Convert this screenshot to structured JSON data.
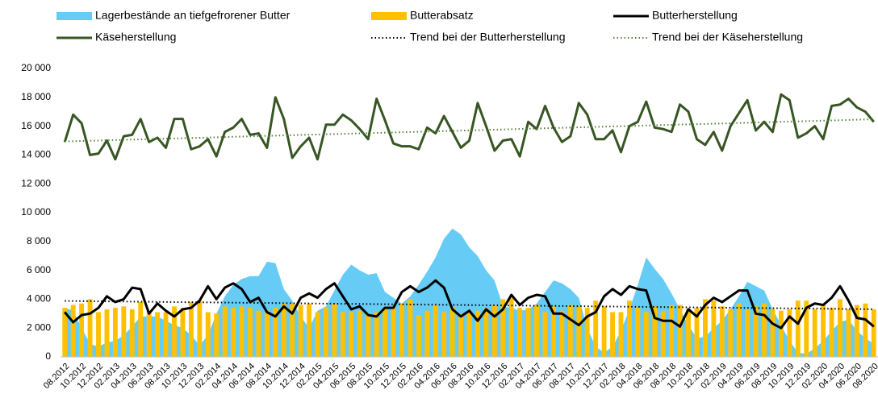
{
  "chart_data": {
    "type": "combo",
    "categories": [
      "08.2012",
      null,
      "10.2012",
      null,
      "12.2012",
      null,
      "02.2013",
      null,
      "04.2013",
      null,
      "06.2013",
      null,
      "08.2013",
      null,
      "10.2013",
      null,
      "12.2013",
      null,
      "02.2014",
      null,
      "04.2014",
      null,
      "06.2014",
      null,
      "08.2014",
      null,
      "10.2014",
      null,
      "12.2014",
      null,
      "02.2015",
      null,
      "04.2015",
      null,
      "06.2015",
      null,
      "08.2015",
      null,
      "10.2015",
      null,
      "12.2015",
      null,
      "02.2016",
      null,
      "04.2016",
      null,
      "06.2016",
      null,
      "08.2016",
      null,
      "10.2016",
      null,
      "12.2016",
      null,
      "02.2017",
      null,
      "04.2017",
      null,
      "06.2017",
      null,
      "08.2017",
      null,
      "10.2017",
      null,
      "12.2017",
      null,
      "02.2018",
      null,
      "04.2018",
      null,
      "06.2018",
      null,
      "08.2018",
      null,
      "10.2018",
      null,
      "12.2018",
      null,
      "02.2019",
      null,
      "04.2019",
      null,
      "06.2019",
      null,
      "08.2019",
      null,
      "10.2019",
      null,
      "12.2019",
      null,
      "02.2020",
      null,
      "04.2020",
      null,
      "06.2020",
      null,
      "08.2020"
    ],
    "ylim": [
      0,
      20000
    ],
    "yticks": [
      0,
      {
        "value": 2000,
        "label": "2 000"
      },
      {
        "value": 4000,
        "label": "4 000"
      },
      {
        "value": 6000,
        "label": "6 000"
      },
      {
        "value": 8000,
        "label": "8 000"
      },
      {
        "value": 10000,
        "label": "10 000"
      },
      {
        "value": 12000,
        "label": "12 000"
      },
      {
        "value": 14000,
        "label": "14 000"
      },
      {
        "value": 16000,
        "label": "16 000"
      },
      {
        "value": 18000,
        "label": "18 000"
      },
      {
        "value": 20000,
        "label": "20 000"
      }
    ],
    "grid": false,
    "series": [
      {
        "name": "Lagerbestände an tiefgefrorener Butter",
        "type": "area",
        "color": "#66ccf5",
        "values": [
          3400,
          3200,
          2000,
          900,
          700,
          1000,
          1100,
          1500,
          2100,
          2800,
          2800,
          2800,
          2500,
          2200,
          2000,
          1500,
          800,
          1500,
          3000,
          4200,
          5000,
          5400,
          5600,
          5600,
          6600,
          6500,
          4700,
          3900,
          2800,
          2000,
          3200,
          3500,
          4600,
          5700,
          6400,
          6000,
          5700,
          5800,
          4500,
          4100,
          3700,
          4200,
          5000,
          5900,
          6900,
          8200,
          8900,
          8500,
          7600,
          7000,
          6000,
          5300,
          3500,
          3400,
          3200,
          3300,
          3700,
          4500,
          5300,
          5100,
          4700,
          4100,
          2000,
          700,
          300,
          700,
          1800,
          3300,
          5000,
          6900,
          6100,
          5400,
          4400,
          3300,
          2200,
          1300,
          1400,
          2000,
          2500,
          3300,
          4200,
          5200,
          4900,
          4600,
          3300,
          2200,
          1100,
          300,
          200,
          600,
          1100,
          1800,
          2400,
          2600,
          1800,
          1300,
          900
        ]
      },
      {
        "name": "Butterabsatz",
        "type": "bar",
        "color": "#ffc000",
        "values": [
          3400,
          3600,
          3700,
          4000,
          3100,
          3300,
          3400,
          3500,
          3300,
          3800,
          3200,
          3100,
          3100,
          3500,
          3400,
          3800,
          3900,
          3100,
          3000,
          3500,
          3400,
          3500,
          3400,
          3200,
          3200,
          3400,
          3700,
          3700,
          3600,
          3700,
          3100,
          3400,
          3700,
          3100,
          3100,
          3200,
          3000,
          3100,
          3400,
          3500,
          3700,
          4000,
          2900,
          3200,
          3600,
          3100,
          3500,
          3000,
          3100,
          3200,
          3400,
          3600,
          4000,
          4100,
          3400,
          3400,
          3600,
          3100,
          3500,
          3200,
          3600,
          3500,
          3400,
          3900,
          3500,
          3100,
          3100,
          3900,
          3400,
          3100,
          3500,
          3200,
          3600,
          3600,
          3300,
          3400,
          4000,
          3900,
          3500,
          3300,
          3700,
          3300,
          3500,
          3700,
          3300,
          3200,
          3300,
          3900,
          3900,
          3300,
          3600,
          3400,
          4000,
          3300,
          3600,
          3700,
          3300
        ]
      },
      {
        "name": "Butterherstellung",
        "type": "line",
        "color": "#000000",
        "values": [
          3100,
          2400,
          2900,
          3000,
          3400,
          4200,
          3800,
          4000,
          4800,
          4700,
          3000,
          3700,
          3200,
          2800,
          3300,
          3400,
          3900,
          4900,
          4000,
          4800,
          5100,
          4700,
          3800,
          4100,
          3100,
          2800,
          3500,
          3000,
          4100,
          4400,
          4100,
          4700,
          5100,
          4200,
          3300,
          3500,
          2900,
          2800,
          3400,
          3400,
          4500,
          4900,
          4500,
          4800,
          5300,
          4800,
          3300,
          2800,
          3200,
          2500,
          3300,
          2800,
          3300,
          4300,
          3600,
          4100,
          4300,
          4200,
          3000,
          3000,
          2600,
          2200,
          2800,
          3100,
          4200,
          4700,
          4300,
          4900,
          4700,
          4600,
          2700,
          2500,
          2500,
          2100,
          3300,
          2800,
          3600,
          4100,
          3800,
          4200,
          4600,
          4600,
          3000,
          2900,
          2300,
          2000,
          2800,
          2300,
          3400,
          3700,
          3600,
          4100,
          4900,
          3900,
          2700,
          2600,
          2100
        ]
      },
      {
        "name": "Käseherstellung",
        "type": "line",
        "color": "#375623",
        "values": [
          14900,
          16800,
          16200,
          14000,
          14100,
          15000,
          13700,
          15300,
          15400,
          16500,
          14900,
          15200,
          14500,
          16500,
          16500,
          14400,
          14600,
          15100,
          13900,
          15600,
          15900,
          16500,
          15400,
          15500,
          14500,
          18000,
          16500,
          13800,
          14600,
          15200,
          13700,
          16100,
          16100,
          16800,
          16400,
          15800,
          15100,
          17900,
          16400,
          14800,
          14600,
          14600,
          14400,
          15900,
          15500,
          16700,
          15600,
          14500,
          15000,
          17600,
          16000,
          14300,
          15000,
          15100,
          13900,
          16300,
          15800,
          17400,
          15900,
          14900,
          15300,
          17600,
          16800,
          15100,
          15100,
          15700,
          14200,
          16000,
          16300,
          17700,
          15900,
          15800,
          15600,
          17500,
          17000,
          15100,
          14700,
          15600,
          14300,
          16000,
          16900,
          17800,
          15700,
          16300,
          15600,
          18200,
          17800,
          15200,
          15500,
          16000,
          15100,
          17400,
          17500,
          17900,
          17300,
          17000,
          16300
        ]
      },
      {
        "name": "Trend bei der Butterherstellung",
        "type": "line",
        "style": "dotted",
        "color": "#000000",
        "values": [
          3880,
          3874,
          3868,
          3862,
          3856,
          3850,
          3844,
          3838,
          3832,
          3826,
          3820,
          3814,
          3808,
          3802,
          3796,
          3790,
          3784,
          3778,
          3772,
          3766,
          3760,
          3754,
          3748,
          3742,
          3736,
          3730,
          3724,
          3718,
          3712,
          3706,
          3700,
          3694,
          3688,
          3682,
          3676,
          3670,
          3664,
          3658,
          3652,
          3646,
          3640,
          3634,
          3628,
          3622,
          3616,
          3610,
          3604,
          3598,
          3592,
          3586,
          3580,
          3574,
          3568,
          3562,
          3556,
          3550,
          3544,
          3538,
          3532,
          3526,
          3520,
          3514,
          3508,
          3502,
          3496,
          3490,
          3484,
          3478,
          3472,
          3466,
          3460,
          3454,
          3448,
          3442,
          3436,
          3430,
          3424,
          3418,
          3412,
          3406,
          3400,
          3394,
          3388,
          3382,
          3376,
          3370,
          3364,
          3358,
          3352,
          3346,
          3340,
          3334,
          3328,
          3322,
          3316,
          3310,
          3304
        ]
      },
      {
        "name": "Trend bei der Käseherstellung",
        "type": "line",
        "style": "dotted",
        "color": "#548235",
        "values": [
          14940,
          14956,
          14972,
          14988,
          15004,
          15020,
          15036,
          15052,
          15068,
          15084,
          15100,
          15116,
          15132,
          15148,
          15164,
          15180,
          15196,
          15212,
          15228,
          15244,
          15260,
          15276,
          15292,
          15308,
          15324,
          15340,
          15356,
          15372,
          15388,
          15404,
          15420,
          15436,
          15452,
          15468,
          15484,
          15500,
          15516,
          15532,
          15548,
          15564,
          15580,
          15596,
          15612,
          15628,
          15644,
          15660,
          15676,
          15692,
          15708,
          15724,
          15740,
          15756,
          15772,
          15788,
          15804,
          15820,
          15836,
          15852,
          15868,
          15884,
          15900,
          15916,
          15932,
          15948,
          15964,
          15980,
          15996,
          16012,
          16028,
          16044,
          16060,
          16076,
          16092,
          16108,
          16124,
          16140,
          16156,
          16172,
          16188,
          16204,
          16220,
          16236,
          16252,
          16268,
          16284,
          16300,
          16316,
          16332,
          16348,
          16364,
          16380,
          16396,
          16412,
          16428,
          16444,
          16460,
          16476
        ]
      }
    ]
  }
}
